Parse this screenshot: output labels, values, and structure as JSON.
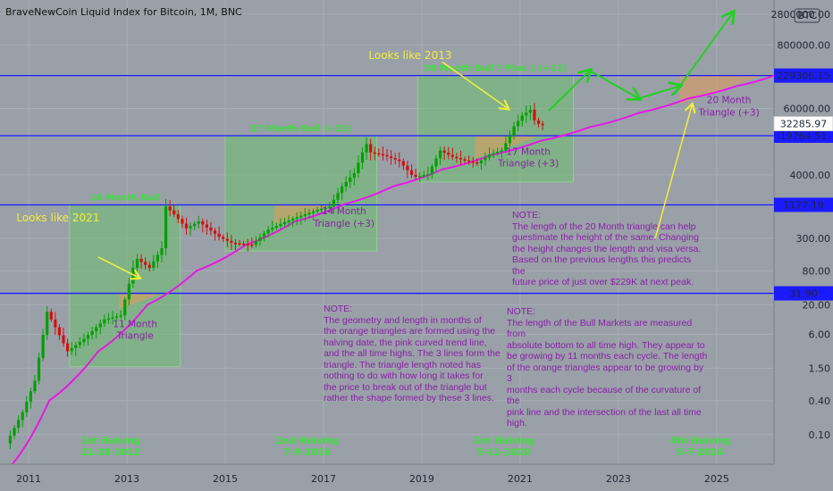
{
  "chart_data": {
    "type": "candlestick",
    "title": "BraveNewCoin Liquid Index for Bitcoin, 1M, BNC",
    "currency_badge": "BTC",
    "x_range": [
      "2010-06",
      "2026-03"
    ],
    "y_scale": "log",
    "y_range": [
      0.03,
      5000000
    ],
    "x_ticks": [
      "2011",
      "2013",
      "2015",
      "2017",
      "2019",
      "2021",
      "2023",
      "2025"
    ],
    "y_ticks": [
      {
        "label": "2800000.00",
        "value": 2800000
      },
      {
        "label": "800000.00",
        "value": 800000
      },
      {
        "label": "60000.00",
        "value": 60000
      },
      {
        "label": "4000.00",
        "value": 4000
      },
      {
        "label": "300.00",
        "value": 300
      },
      {
        "label": "80.00",
        "value": 80
      },
      {
        "label": "20.00",
        "value": 20
      },
      {
        "label": "6.00",
        "value": 6
      },
      {
        "label": "1.50",
        "value": 1.5
      },
      {
        "label": "0.40",
        "value": 0.4
      },
      {
        "label": "0.10",
        "value": 0.1
      }
    ],
    "horizontal_levels": [
      {
        "label": "229306.15",
        "value": 229306.15
      },
      {
        "label": "19764.51",
        "value": 19764.51
      },
      {
        "label": "1177.19",
        "value": 1177.19
      },
      {
        "label": "31.90",
        "value": 31.9
      }
    ],
    "last_price": {
      "label": "32285.97",
      "value": 32285.97
    },
    "price_path": [
      [
        "2010-08",
        0.07
      ],
      [
        "2010-12",
        0.25
      ],
      [
        "2011-03",
        0.9
      ],
      [
        "2011-06",
        15
      ],
      [
        "2011-08",
        8
      ],
      [
        "2011-11",
        3
      ],
      [
        "2012-03",
        5
      ],
      [
        "2012-08",
        11
      ],
      [
        "2012-12",
        13
      ],
      [
        "2013-03",
        90
      ],
      [
        "2013-04",
        130
      ],
      [
        "2013-07",
        90
      ],
      [
        "2013-10",
        200
      ],
      [
        "2013-11",
        1100
      ],
      [
        "2014-01",
        800
      ],
      [
        "2014-04",
        450
      ],
      [
        "2014-07",
        600
      ],
      [
        "2014-12",
        320
      ],
      [
        "2015-03",
        250
      ],
      [
        "2015-08",
        230
      ],
      [
        "2015-12",
        430
      ],
      [
        "2016-06",
        670
      ],
      [
        "2016-12",
        960
      ],
      [
        "2017-03",
        1100
      ],
      [
        "2017-06",
        2500
      ],
      [
        "2017-09",
        4300
      ],
      [
        "2017-11",
        10000
      ],
      [
        "2017-12",
        14000
      ],
      [
        "2018-01",
        10000
      ],
      [
        "2018-04",
        9000
      ],
      [
        "2018-08",
        7000
      ],
      [
        "2018-11",
        4000
      ],
      [
        "2018-12",
        3700
      ],
      [
        "2019-03",
        4100
      ],
      [
        "2019-06",
        10800
      ],
      [
        "2019-09",
        8300
      ],
      [
        "2019-12",
        7200
      ],
      [
        "2020-03",
        6400
      ],
      [
        "2020-06",
        9100
      ],
      [
        "2020-09",
        10800
      ],
      [
        "2020-11",
        19700
      ],
      [
        "2020-12",
        29000
      ],
      [
        "2021-02",
        45000
      ],
      [
        "2021-04",
        57000
      ],
      [
        "2021-05",
        37000
      ],
      [
        "2021-06",
        32000
      ]
    ],
    "trend_curve": [
      [
        "2010-09",
        0.03
      ],
      [
        "2011-06",
        0.4
      ],
      [
        "2012-06",
        3
      ],
      [
        "2013-06",
        20
      ],
      [
        "2014-06",
        80
      ],
      [
        "2015-06",
        230
      ],
      [
        "2016-06",
        600
      ],
      [
        "2017-06",
        1200
      ],
      [
        "2018-06",
        2500
      ],
      [
        "2019-06",
        5000
      ],
      [
        "2020-06",
        9000
      ],
      [
        "2021-06",
        16000
      ],
      [
        "2022-06",
        28000
      ],
      [
        "2023-06",
        50000
      ],
      [
        "2024-06",
        90000
      ],
      [
        "2025-06",
        150000
      ],
      [
        "2026-03",
        229306.15
      ]
    ],
    "bull_boxes": [
      {
        "label": "16 Month Bull",
        "x0": "2011-11",
        "x1": "2014-02",
        "y0": 1.6,
        "y1": 1177.19
      },
      {
        "label": "27 Month Bull (+11)",
        "x0": "2015-01",
        "x1": "2018-02",
        "y0": 180,
        "y1": 19764.51
      },
      {
        "label": "38 Month Bull ? Plus 1 (+11)",
        "x0": "2018-12",
        "x1": "2022-02",
        "y0": 3000,
        "y1": 229306.15
      }
    ],
    "orange_triangles": [
      {
        "x0": "2012-11",
        "x1": "2013-10",
        "y_top": 32
      },
      {
        "x0": "2016-01",
        "x1": "2017-03",
        "y_top": 1177.19
      },
      {
        "x0": "2020-02",
        "x1": "2021-06",
        "y_top": 19764.51
      },
      {
        "x0": "2024-04",
        "x1": "2025-12",
        "y_top": 229306.15
      }
    ],
    "green_arrows": [
      [
        "2021-08",
        55000
      ],
      [
        "2022-06",
        280000
      ],
      [
        "2023-06",
        90000
      ],
      [
        "2024-04",
        150000
      ],
      [
        "2025-05",
        3000000
      ]
    ],
    "yellow_arrows": [
      {
        "from": [
          "2012-06",
          140
        ],
        "to": [
          "2013-04",
          60
        ]
      },
      {
        "from": [
          "2019-06",
          400000
        ],
        "to": [
          "2020-10",
          60000
        ]
      },
      {
        "from": [
          "2023-10",
          300
        ],
        "to": [
          "2024-07",
          70000
        ]
      }
    ],
    "annotations": [
      {
        "text": "Looks like 2021",
        "x": "2010-10",
        "y": 600
      },
      {
        "text": "Looks like 2013",
        "x": "2017-12",
        "y": 450000
      },
      {
        "text": "11 Month",
        "x": "2013-03",
        "y": 8
      },
      {
        "text": "Triangle",
        "x": "2013-03",
        "y": 5
      },
      {
        "text": "14 Month",
        "x": "2017-06",
        "y": 800
      },
      {
        "text": "Triangle (+3)",
        "x": "2017-06",
        "y": 480
      },
      {
        "text": "17 Month",
        "x": "2021-03",
        "y": 9000
      },
      {
        "text": "Triangle (+3)",
        "x": "2021-03",
        "y": 5600
      },
      {
        "text": "20 Month",
        "x": "2025-04",
        "y": 75000
      },
      {
        "text": "Triangle (+3)",
        "x": "2025-04",
        "y": 45000
      }
    ],
    "halvings": [
      {
        "name": "1st Halving",
        "date": "11-28-2012",
        "x": "2012-09"
      },
      {
        "name": "2nd Halving",
        "date": "7-9-2016",
        "x": "2016-09"
      },
      {
        "name": "3rd Halving",
        "date": "5-11-2020",
        "x": "2020-09"
      },
      {
        "name": "4th Halving",
        "date": "5-7-2024",
        "x": "2024-09"
      }
    ],
    "colors": {
      "background": "#9aa0a8",
      "level_line": "#1a1aff",
      "trend_curve": "#e619e6",
      "green_box": "#6ebf6e",
      "orange_triangle": "#e39b5a",
      "candle_up": "#00a000",
      "candle_down": "#d01010",
      "green_arrow": "#22d022",
      "yellow_arrow": "#f2ee3a",
      "note_text": "#8a1ea8",
      "label_text": "#f2ee3a",
      "halving_text": "#3de03d"
    }
  },
  "notes": {
    "note1": "NOTE:\nThe length of the 20 Month triangle can help\nguestimate the height of the same.  Changing\nthe height changes the length and visa versa.\nBased on the previous lengths this predicts the\nfuture price of just over $229K at next peak.",
    "note2": "NOTE:\nThe geometry and length in months of\nthe orange triangles are formed using the\nhalving date, the pink curved trend line,\nand the all time highs. The 3 lines form the\ntriangle. The triangle length noted has\nnothing to do with how long it takes for\nthe price to break out of the triangle but\nrather the shape formed by these 3 lines.",
    "note3": "NOTE:\nThe length of the Bull Markets are measured from\nabsolute bottom to all time high. They appear to\nbe growing by 11 months each cycle. The length\nof the orange triangles appear to be growing by 3\nmonths each cycle because of the curvature of the\npink line and the intersection of the last all time\nhigh."
  }
}
